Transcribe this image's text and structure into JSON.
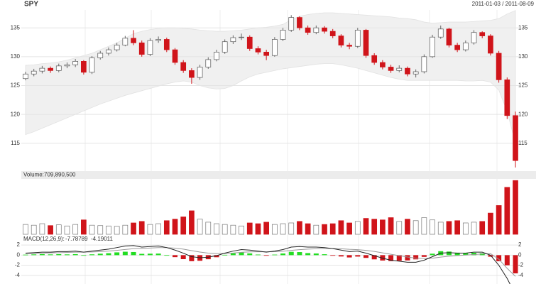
{
  "chart_data": {
    "type": "candlestick",
    "title": "SPY",
    "subtitle": "2011-01-03 / 2011-08-09",
    "open": [
      126.2,
      127.0,
      127.5,
      128.0,
      127.6,
      128.4,
      128.6,
      129.2,
      127.3,
      129.8,
      130.6,
      131.2,
      132.0,
      133.2,
      132.4,
      130.4,
      132.8,
      133.0,
      131.2,
      129.0,
      127.6,
      126.4,
      128.2,
      129.5,
      130.8,
      132.6,
      133.3,
      133.4,
      131.4,
      130.8,
      130.2,
      133.0,
      134.6,
      136.8,
      135.0,
      134.2,
      135.0,
      134.4,
      133.6,
      132.0,
      131.8,
      134.6,
      130.2,
      129.0,
      128.2,
      127.6,
      128.0,
      127.0,
      127.4,
      130.0,
      133.4,
      134.8,
      132.0,
      131.2,
      132.4,
      134.2,
      133.6,
      130.6,
      126.0,
      119.8
    ],
    "high": [
      127.4,
      127.9,
      128.4,
      128.3,
      128.8,
      129.0,
      129.6,
      129.4,
      130.1,
      131.0,
      131.6,
      132.4,
      133.6,
      134.6,
      132.8,
      133.2,
      133.5,
      133.3,
      131.5,
      129.4,
      128.0,
      128.6,
      129.9,
      131.2,
      133.0,
      133.7,
      134.0,
      133.7,
      131.8,
      131.2,
      133.4,
      135.0,
      137.2,
      137.0,
      135.4,
      135.4,
      135.3,
      134.8,
      133.9,
      132.4,
      135.0,
      134.8,
      130.6,
      129.4,
      128.6,
      128.5,
      128.3,
      127.8,
      130.4,
      133.8,
      135.4,
      135.0,
      132.4,
      132.8,
      134.6,
      134.4,
      133.9,
      131.0,
      126.4,
      120.5
    ],
    "low": [
      125.9,
      126.6,
      127.1,
      127.2,
      127.3,
      128.0,
      128.2,
      126.9,
      127.0,
      129.5,
      130.2,
      130.9,
      131.8,
      132.0,
      130.0,
      130.1,
      132.4,
      130.8,
      128.6,
      127.2,
      125.3,
      126.0,
      127.9,
      129.2,
      130.5,
      132.2,
      132.9,
      131.0,
      130.4,
      129.4,
      130.0,
      132.7,
      134.3,
      134.6,
      133.8,
      133.9,
      134.0,
      133.2,
      131.6,
      131.3,
      131.5,
      129.8,
      128.6,
      127.8,
      127.2,
      127.3,
      126.6,
      126.4,
      127.1,
      129.8,
      133.1,
      131.6,
      130.8,
      130.9,
      132.1,
      133.2,
      130.2,
      125.5,
      119.2,
      110.8
    ],
    "close": [
      127.0,
      127.5,
      128.0,
      127.6,
      128.4,
      128.6,
      129.2,
      127.3,
      129.8,
      130.6,
      131.2,
      132.0,
      133.2,
      132.4,
      130.4,
      132.8,
      133.0,
      131.2,
      129.0,
      127.6,
      126.4,
      128.2,
      129.5,
      130.8,
      132.6,
      133.3,
      133.4,
      131.4,
      130.8,
      130.2,
      133.0,
      134.6,
      136.8,
      135.0,
      134.2,
      135.0,
      134.4,
      133.6,
      132.0,
      131.8,
      134.6,
      130.2,
      129.0,
      128.2,
      127.6,
      128.0,
      127.0,
      127.4,
      130.0,
      133.4,
      134.8,
      132.0,
      131.2,
      132.4,
      134.2,
      133.6,
      130.6,
      126.0,
      119.8,
      112.0
    ],
    "band_upper": [
      128.5,
      128.6,
      128.8,
      128.9,
      129.1,
      129.4,
      129.8,
      130.2,
      130.6,
      131.2,
      131.8,
      132.4,
      133.2,
      134.0,
      134.4,
      134.7,
      134.9,
      135.0,
      135.0,
      134.9,
      134.8,
      134.6,
      134.5,
      134.4,
      134.4,
      134.5,
      134.6,
      134.8,
      135.0,
      135.1,
      135.3,
      135.6,
      136.4,
      137.0,
      137.3,
      137.5,
      137.6,
      137.6,
      137.5,
      137.4,
      137.3,
      137.2,
      137.1,
      137.0,
      136.9,
      136.7,
      136.6,
      136.4,
      136.0,
      135.8,
      135.9,
      136.0,
      136.0,
      136.0,
      136.1,
      136.2,
      136.3,
      136.6,
      137.4,
      138.0
    ],
    "band_lower": [
      116.5,
      117.0,
      117.6,
      118.2,
      118.8,
      119.4,
      120.0,
      120.6,
      121.2,
      121.8,
      122.3,
      122.8,
      123.3,
      123.7,
      124.1,
      124.5,
      124.9,
      125.3,
      125.6,
      125.8,
      125.6,
      125.0,
      124.6,
      124.4,
      124.5,
      125.0,
      125.8,
      126.5,
      127.0,
      127.3,
      127.6,
      127.9,
      128.1,
      128.3,
      128.5,
      128.7,
      128.8,
      128.8,
      128.6,
      128.3,
      128.0,
      127.6,
      127.2,
      126.8,
      126.4,
      126.1,
      125.9,
      125.9,
      125.9,
      125.9,
      125.9,
      125.9,
      125.9,
      125.8,
      125.8,
      125.9,
      125.6,
      124.2,
      120.5,
      115.0
    ],
    "band_color": "#f0f0f0",
    "up_color": "#ffffff",
    "down_color": "#d0141a",
    "ylim": [
      110.3,
      138.1
    ],
    "yticks": [
      115,
      120,
      125,
      130,
      135
    ],
    "grid": true,
    "volume": {
      "label": "Volume:",
      "values": [
        130000000,
        120000000,
        140000000,
        115000000,
        125000000,
        110000000,
        130000000,
        190000000,
        120000000,
        115000000,
        110000000,
        105000000,
        120000000,
        150000000,
        170000000,
        130000000,
        140000000,
        180000000,
        200000000,
        230000000,
        310000000,
        200000000,
        160000000,
        140000000,
        130000000,
        120000000,
        110000000,
        150000000,
        140000000,
        160000000,
        130000000,
        140000000,
        150000000,
        170000000,
        140000000,
        120000000,
        130000000,
        140000000,
        180000000,
        150000000,
        170000000,
        210000000,
        200000000,
        190000000,
        220000000,
        170000000,
        200000000,
        180000000,
        220000000,
        190000000,
        160000000,
        170000000,
        180000000,
        150000000,
        160000000,
        170000000,
        280000000,
        380000000,
        620000000,
        709890500
      ],
      "value_labels": [
        null,
        null,
        null,
        null,
        null,
        null,
        null,
        null,
        null,
        null,
        null,
        null,
        null,
        null,
        null,
        null,
        null,
        null,
        null,
        null,
        null,
        null,
        null,
        null,
        null,
        null,
        null,
        null,
        null,
        null,
        null,
        null,
        null,
        null,
        null,
        null,
        null,
        null,
        null,
        null,
        null,
        null,
        null,
        null,
        null,
        null,
        null,
        null,
        null,
        null,
        null,
        null,
        null,
        null,
        null,
        null,
        null,
        null,
        null,
        "709,890,500"
      ],
      "ylim": [
        0,
        712000000
      ]
    },
    "macd": {
      "label": "MACD(12,26,9):",
      "macd": [
        0.4,
        0.5,
        0.6,
        0.6,
        0.7,
        0.7,
        0.8,
        0.6,
        0.8,
        1.0,
        1.2,
        1.5,
        1.8,
        1.9,
        1.6,
        1.7,
        1.8,
        1.5,
        1.0,
        0.4,
        -0.3,
        -0.5,
        -0.4,
        -0.1,
        0.4,
        0.8,
        1.1,
        1.0,
        0.8,
        0.6,
        0.8,
        1.1,
        1.6,
        1.7,
        1.6,
        1.6,
        1.5,
        1.3,
        1.0,
        0.7,
        0.8,
        0.4,
        -0.1,
        -0.6,
        -1.0,
        -1.2,
        -1.4,
        -1.4,
        -1.0,
        -0.3,
        0.4,
        0.5,
        0.4,
        0.4,
        0.6,
        0.6,
        0.0,
        -2.0,
        -4.6,
        -7.78789
      ],
      "signal": [
        0.3,
        0.35,
        0.4,
        0.45,
        0.5,
        0.55,
        0.6,
        0.6,
        0.64,
        0.71,
        0.81,
        0.95,
        1.12,
        1.28,
        1.34,
        1.41,
        1.49,
        1.49,
        1.39,
        1.19,
        0.89,
        0.61,
        0.41,
        0.31,
        0.33,
        0.42,
        0.56,
        0.65,
        0.68,
        0.66,
        0.69,
        0.77,
        0.94,
        1.09,
        1.19,
        1.27,
        1.32,
        1.32,
        1.26,
        1.15,
        1.08,
        0.94,
        0.73,
        0.46,
        0.17,
        -0.1,
        -0.36,
        -0.57,
        -0.66,
        -0.59,
        -0.39,
        -0.21,
        -0.09,
        0.01,
        0.13,
        0.22,
        0.3,
        -0.8,
        -2.6,
        -4.19011
      ],
      "histogram": [
        0.1,
        0.15,
        0.2,
        0.15,
        0.2,
        0.15,
        0.2,
        0.0,
        0.16,
        0.29,
        0.39,
        0.55,
        0.68,
        0.62,
        0.26,
        0.29,
        0.31,
        0.01,
        -0.39,
        -0.79,
        -1.19,
        -1.11,
        -0.81,
        -0.41,
        0.07,
        0.38,
        0.54,
        0.35,
        0.12,
        -0.06,
        0.11,
        0.33,
        0.66,
        0.61,
        0.41,
        0.33,
        0.18,
        -0.02,
        -0.26,
        -0.45,
        -0.28,
        -0.54,
        -0.83,
        -1.06,
        -1.17,
        -1.1,
        -1.04,
        -0.83,
        -0.34,
        0.29,
        0.79,
        0.71,
        0.49,
        0.39,
        0.47,
        0.38,
        -0.3,
        -1.2,
        -2.0,
        -3.59778
      ],
      "pos_color": "#22dd22",
      "neg_color": "#d0141a",
      "line_color": "#222222",
      "signal_color": "#999999",
      "ylim": [
        -5.7,
        3
      ],
      "yticks": [
        -4,
        -2,
        0,
        2
      ]
    }
  }
}
